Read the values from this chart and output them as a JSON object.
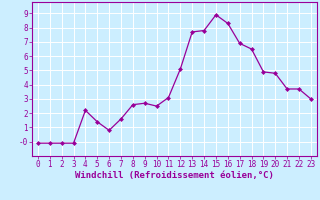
{
  "x": [
    0,
    1,
    2,
    3,
    4,
    5,
    6,
    7,
    8,
    9,
    10,
    11,
    12,
    13,
    14,
    15,
    16,
    17,
    18,
    19,
    20,
    21,
    22,
    23
  ],
  "y": [
    -0.1,
    -0.1,
    -0.1,
    -0.1,
    2.2,
    1.4,
    0.8,
    1.6,
    2.6,
    2.7,
    2.5,
    3.1,
    5.1,
    7.7,
    7.8,
    8.9,
    8.3,
    6.9,
    6.5,
    4.9,
    4.8,
    3.7,
    3.7,
    3.0
  ],
  "line_color": "#990099",
  "marker": "D",
  "markersize": 2.0,
  "linewidth": 0.9,
  "xlabel": "Windchill (Refroidissement éolien,°C)",
  "xlabel_fontsize": 6.5,
  "xlabel_color": "#990099",
  "bg_color": "#cceeff",
  "grid_color": "#ffffff",
  "tick_color": "#990099",
  "label_color": "#990099",
  "xlim": [
    -0.5,
    23.5
  ],
  "ylim": [
    -1.0,
    9.8
  ],
  "yticks": [
    0,
    1,
    2,
    3,
    4,
    5,
    6,
    7,
    8,
    9
  ],
  "ytick_labels": [
    "-0",
    "1",
    "2",
    "3",
    "4",
    "5",
    "6",
    "7",
    "8",
    "9"
  ],
  "xticks": [
    0,
    1,
    2,
    3,
    4,
    5,
    6,
    7,
    8,
    9,
    10,
    11,
    12,
    13,
    14,
    15,
    16,
    17,
    18,
    19,
    20,
    21,
    22,
    23
  ],
  "tick_fontsize": 5.5,
  "spine_color": "#990099"
}
